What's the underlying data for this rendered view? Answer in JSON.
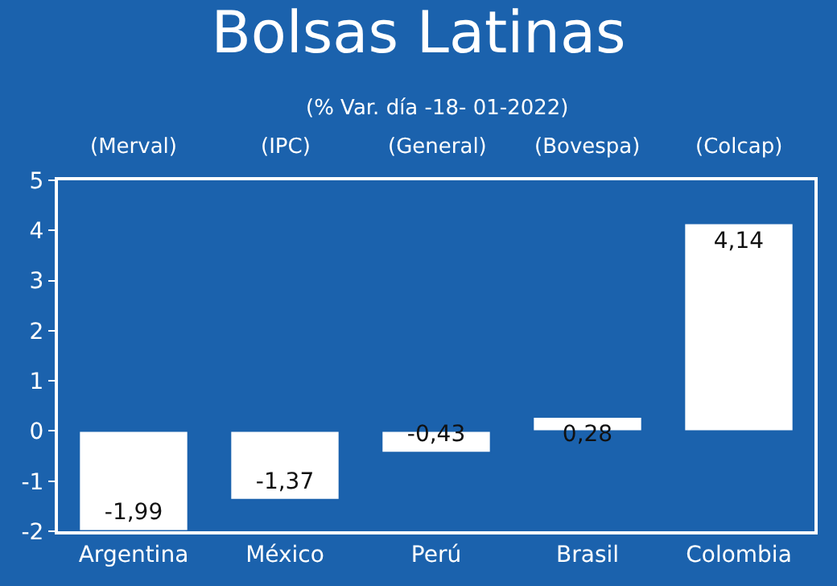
{
  "chart_data": {
    "type": "bar",
    "title": "Bolsas Latinas",
    "subtitle": "(% Var. día -18- 01-2022)",
    "categories": [
      "Argentina",
      "México",
      "Perú",
      "Brasil",
      "Colombia"
    ],
    "values": [
      -1.99,
      -1.37,
      -0.43,
      0.28,
      4.14
    ],
    "value_labels": [
      "-1,99",
      "-1,37",
      "-0,43",
      "0,28",
      "4,14"
    ],
    "color": "#ffffff",
    "annotations": [
      "(Merval)",
      "(IPC)",
      "(General)",
      "(Bovespa)",
      "(Colcap)"
    ],
    "ylim": [
      -2,
      5
    ],
    "yticks": [
      -2,
      -1,
      0,
      1,
      2,
      3,
      4,
      5
    ]
  }
}
